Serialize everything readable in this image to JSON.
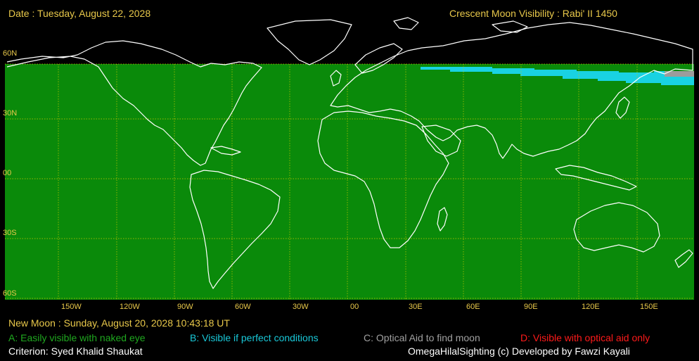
{
  "header": {
    "date": "Date : Tuesday, August 22, 2028",
    "title": "Crescent Moon Visibility : Rabi' II  1450"
  },
  "lat_labels": [
    "60N",
    "30N",
    "00",
    "30S",
    "60S"
  ],
  "lon_labels": [
    "150W",
    "120W",
    "90W",
    "60W",
    "30W",
    "00",
    "30E",
    "60E",
    "90E",
    "120E",
    "150E"
  ],
  "footer": {
    "new_moon": "New Moon : Sunday, August 20, 2028  10:43:18  UT",
    "criterion": "Criterion: Syed Khalid Shaukat",
    "credits": "OmegaHilalSighting  (c)  Developed by Fawzi Kayali"
  },
  "legend": [
    {
      "label": "A: Easily visible with naked eye",
      "color": "#1fa81f"
    },
    {
      "label": "B: Visible if perfect conditions",
      "color": "#19c8d8"
    },
    {
      "label": "C: Optical Aid to find moon",
      "color": "#a0a0a0"
    },
    {
      "label": "D: Visible with optical aid only",
      "color": "#ff1a1a"
    }
  ],
  "colors": {
    "region_a": "#0a8a0a",
    "region_b": "#19d2e2",
    "region_c": "#9c9c9c",
    "grid": "#c8c800",
    "coast": "#ffffff",
    "label": "#e8c84a"
  }
}
